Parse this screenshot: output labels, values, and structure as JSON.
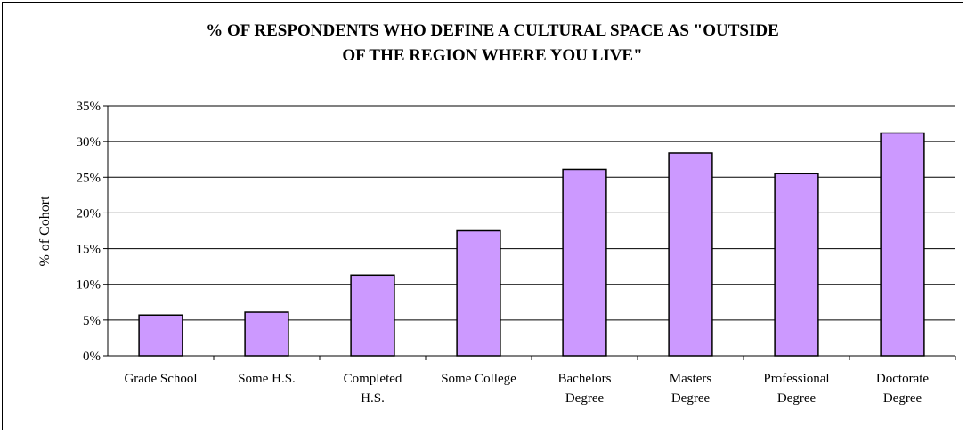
{
  "chart_data": {
    "type": "bar",
    "title_lines": [
      "% OF RESPONDENTS WHO DEFINE A CULTURAL SPACE AS \"OUTSIDE",
      "OF THE REGION WHERE YOU LIVE\""
    ],
    "xlabel": "",
    "ylabel": "% of Cohort",
    "ylim": [
      0,
      35
    ],
    "y_ticks": [
      "0%",
      "5%",
      "10%",
      "15%",
      "20%",
      "25%",
      "30%",
      "35%"
    ],
    "grid": true,
    "legend": "none",
    "categories": [
      [
        "Grade School"
      ],
      [
        "Some H.S."
      ],
      [
        "Completed",
        "H.S."
      ],
      [
        "Some College"
      ],
      [
        "Bachelors",
        "Degree"
      ],
      [
        "Masters",
        "Degree"
      ],
      [
        "Professional",
        "Degree"
      ],
      [
        "Doctorate",
        "Degree"
      ]
    ],
    "values": [
      5.7,
      6.1,
      11.3,
      17.5,
      26.1,
      28.4,
      25.5,
      31.2
    ],
    "colors": {
      "bar": "#cc99ff",
      "bar_stroke": "#000000",
      "grid": "#000000"
    }
  }
}
